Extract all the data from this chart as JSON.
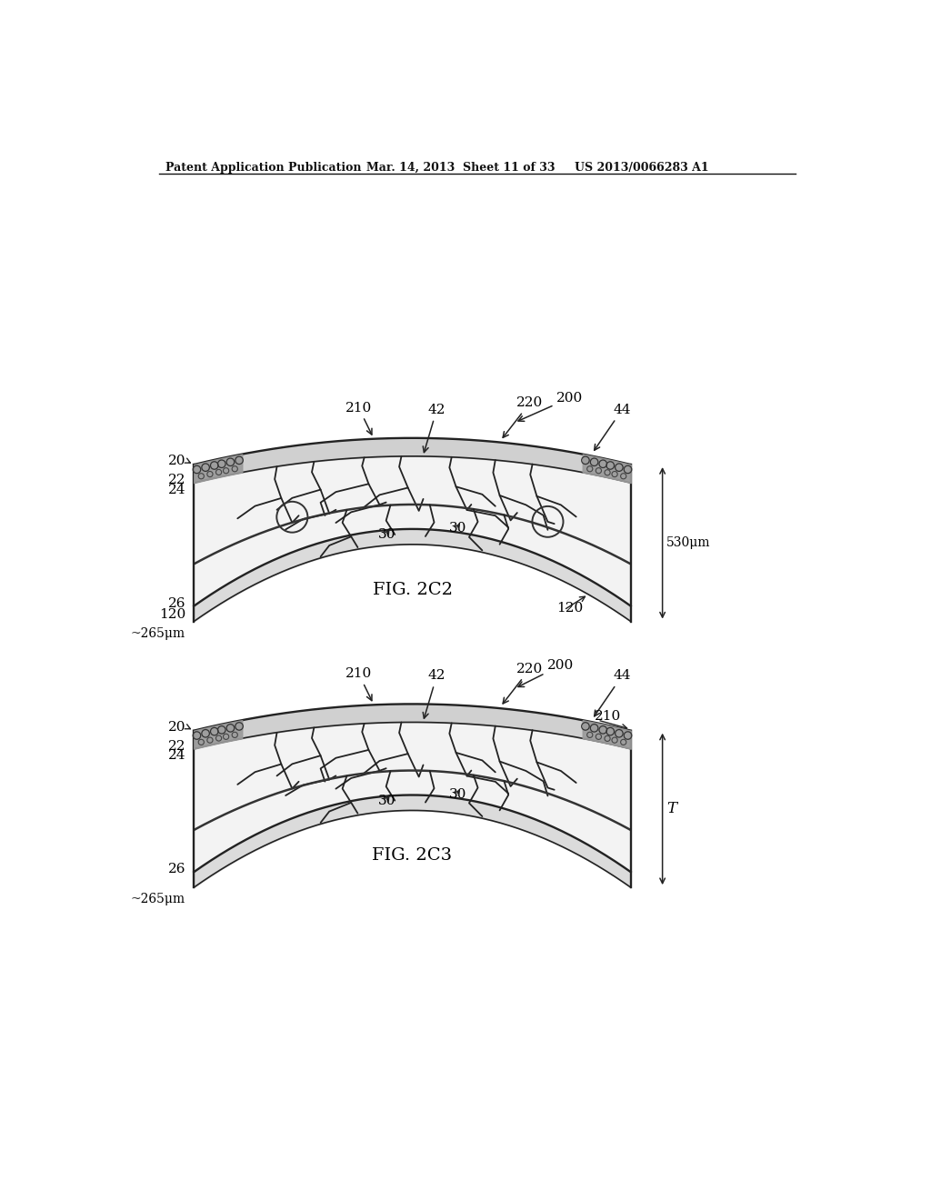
{
  "header_left": "Patent Application Publication",
  "header_mid": "Mar. 14, 2013  Sheet 11 of 33",
  "header_right": "US 2013/0066283 A1",
  "fig1_label": "FIG. 2C2",
  "fig2_label": "FIG. 2C3",
  "bg_color": "#ffffff"
}
